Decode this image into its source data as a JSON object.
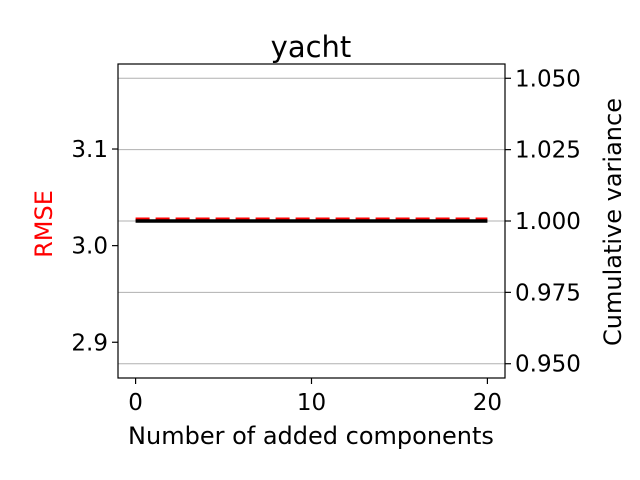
{
  "chart_data": {
    "type": "line",
    "title": "yacht",
    "xlabel": "Number of added components",
    "ylabel_left": "RMSE",
    "ylabel_right": "Cumulative variance",
    "xlim": [
      -1,
      21
    ],
    "ylim_left": [
      2.863,
      3.188
    ],
    "ylim_right": [
      0.945,
      1.055
    ],
    "x_ticks": [
      0,
      10,
      20
    ],
    "y_ticks_left": [
      2.9,
      3.0,
      3.1
    ],
    "y_ticks_right": [
      0.95,
      0.975,
      1.0,
      1.025,
      1.05
    ],
    "y_tick_labels_left": [
      "2.9",
      "3.0",
      "3.1"
    ],
    "y_tick_labels_right": [
      "0.950",
      "0.975",
      "1.000",
      "1.025",
      "1.050"
    ],
    "grid": "right-axis horizontal",
    "colors": {
      "rmse": "#ff0000",
      "variance": "#000000",
      "ylabel_left": "#ff0000",
      "grid": "#b0b0b0"
    },
    "series": [
      {
        "axis": "left",
        "style": "dashed",
        "x": [
          0,
          1,
          2,
          3,
          4,
          5,
          6,
          7,
          8,
          9,
          10,
          11,
          12,
          13,
          14,
          15,
          16,
          17,
          18,
          19,
          20
        ],
        "values": [
          3.027,
          3.027,
          3.027,
          3.027,
          3.027,
          3.027,
          3.027,
          3.027,
          3.027,
          3.027,
          3.027,
          3.027,
          3.027,
          3.027,
          3.027,
          3.027,
          3.027,
          3.027,
          3.027,
          3.027,
          3.027
        ]
      },
      {
        "axis": "right",
        "style": "solid",
        "x": [
          0,
          1,
          2,
          3,
          4,
          5,
          6,
          7,
          8,
          9,
          10,
          11,
          12,
          13,
          14,
          15,
          16,
          17,
          18,
          19,
          20
        ],
        "values": [
          1.0,
          1.0,
          1.0,
          1.0,
          1.0,
          1.0,
          1.0,
          1.0,
          1.0,
          1.0,
          1.0,
          1.0,
          1.0,
          1.0,
          1.0,
          1.0,
          1.0,
          1.0,
          1.0,
          1.0,
          1.0
        ]
      }
    ]
  }
}
